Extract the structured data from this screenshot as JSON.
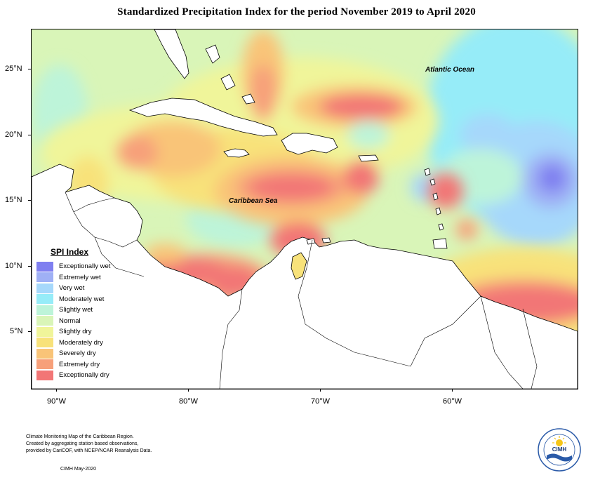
{
  "title": "Standardized Precipitation Index for the period November 2019 to April 2020",
  "map_labels": {
    "ocean": "Atlantic Ocean",
    "sea": "Caribbean Sea"
  },
  "axes": {
    "latitude_ticks": [
      "25°N",
      "20°N",
      "15°N",
      "10°N",
      "5°N"
    ],
    "longitude_ticks": [
      "90°W",
      "80°W",
      "70°W",
      "60°W"
    ]
  },
  "legend": {
    "title": "SPI Index",
    "items": [
      {
        "label": "Exceptionally wet",
        "color": "#7f7ff0"
      },
      {
        "label": "Extremely wet",
        "color": "#9fb0f5"
      },
      {
        "label": "Very wet",
        "color": "#a6d8fb"
      },
      {
        "label": "Moderately wet",
        "color": "#96ecf8"
      },
      {
        "label": "Slightly wet",
        "color": "#bdf4d9"
      },
      {
        "label": "Normal",
        "color": "#d9f5b8"
      },
      {
        "label": "Slightly dry",
        "color": "#f0f59a"
      },
      {
        "label": "Moderately dry",
        "color": "#f8e27a"
      },
      {
        "label": "Severely dry",
        "color": "#f9c478"
      },
      {
        "label": "Extremely dry",
        "color": "#f7a07a"
      },
      {
        "label": "Exceptionally dry",
        "color": "#f27676"
      }
    ]
  },
  "footnote": [
    "Climate Monitoring Map of the Caribbean Region.",
    "Created by aggregating station based observations,",
    "provided by CariCOF, with NCEP/NCAR Reanalysis Data."
  ],
  "credit": "CIMH May-2020",
  "logo": {
    "text": "CIMH",
    "icon": "sun-icon"
  }
}
